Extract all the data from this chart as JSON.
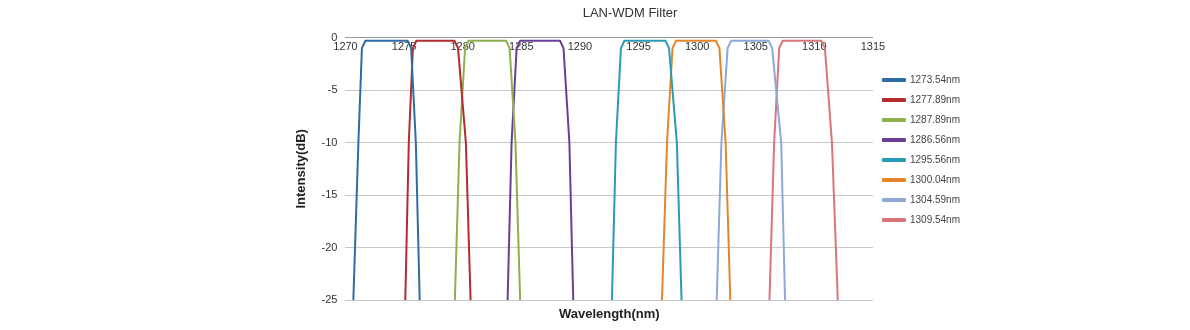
{
  "chart_data": {
    "type": "line",
    "title": "LAN-WDM Filter",
    "xlabel": "Wavelength(nm)",
    "ylabel": "Intensity(dB)",
    "xlim": [
      1270,
      1315
    ],
    "xticks": [
      1270,
      1275,
      1280,
      1285,
      1290,
      1295,
      1300,
      1305,
      1310,
      1315
    ],
    "ylim": [
      -25,
      0
    ],
    "yticks": [
      -25,
      -20,
      -15,
      -10,
      -5,
      0
    ],
    "grid": "y",
    "legend": "right",
    "marker": "none",
    "line_style": "solid",
    "series": [
      {
        "name": "1273.54nm",
        "color": "#2e6ca4",
        "x": [
          1270.67,
          1271.1,
          1271.4,
          1271.7,
          1275.3,
          1275.6,
          1276.0,
          1276.33
        ],
        "values": [
          -25,
          -10,
          -1,
          -0.3,
          -0.3,
          -1,
          -10,
          -25
        ]
      },
      {
        "name": "1277.89nm",
        "color": "#b22b2e",
        "x": [
          1275.1,
          1275.4,
          1275.75,
          1276.05,
          1279.3,
          1279.6,
          1280.27,
          1280.67
        ],
        "values": [
          -25,
          -10,
          -1,
          -0.3,
          -0.3,
          -1,
          -10,
          -25
        ]
      },
      {
        "name": "1287.89nm",
        "color": "#8db04a",
        "x": [
          1279.33,
          1279.73,
          1280.2,
          1280.5,
          1283.7,
          1284.0,
          1284.5,
          1284.9
        ],
        "values": [
          -25,
          -10,
          -1,
          -0.3,
          -0.3,
          -1,
          -10,
          -25
        ]
      },
      {
        "name": "1286.56nm",
        "color": "#6a3d96",
        "x": [
          1283.83,
          1284.17,
          1284.6,
          1284.9,
          1288.3,
          1288.6,
          1289.1,
          1289.43
        ],
        "values": [
          -25,
          -10,
          -1,
          -0.3,
          -0.3,
          -1,
          -10,
          -25
        ]
      },
      {
        "name": "1295.56nm",
        "color": "#2a9bb5",
        "x": [
          1292.73,
          1293.07,
          1293.5,
          1293.8,
          1297.3,
          1297.6,
          1298.27,
          1298.67
        ],
        "values": [
          -25,
          -10,
          -1,
          -0.3,
          -0.3,
          -1,
          -10,
          -25
        ]
      },
      {
        "name": "1300.04nm",
        "color": "#e5852a",
        "x": [
          1297.0,
          1297.43,
          1297.9,
          1298.2,
          1301.6,
          1301.9,
          1302.43,
          1302.83
        ],
        "values": [
          -25,
          -10,
          -1,
          -0.3,
          -0.3,
          -1,
          -10,
          -25
        ]
      },
      {
        "name": "1304.59nm",
        "color": "#8ea9d6",
        "x": [
          1301.67,
          1302.07,
          1302.6,
          1302.9,
          1306.1,
          1306.4,
          1307.17,
          1307.5
        ],
        "values": [
          -25,
          -10,
          -1,
          -0.3,
          -0.3,
          -1,
          -10,
          -25
        ]
      },
      {
        "name": "1309.54nm",
        "color": "#d9757a",
        "x": [
          1306.17,
          1306.57,
          1307.0,
          1307.3,
          1310.6,
          1310.9,
          1311.5,
          1312.0
        ],
        "values": [
          -25,
          -10,
          -1,
          -0.3,
          -0.3,
          -1,
          -10,
          -25
        ]
      }
    ]
  }
}
